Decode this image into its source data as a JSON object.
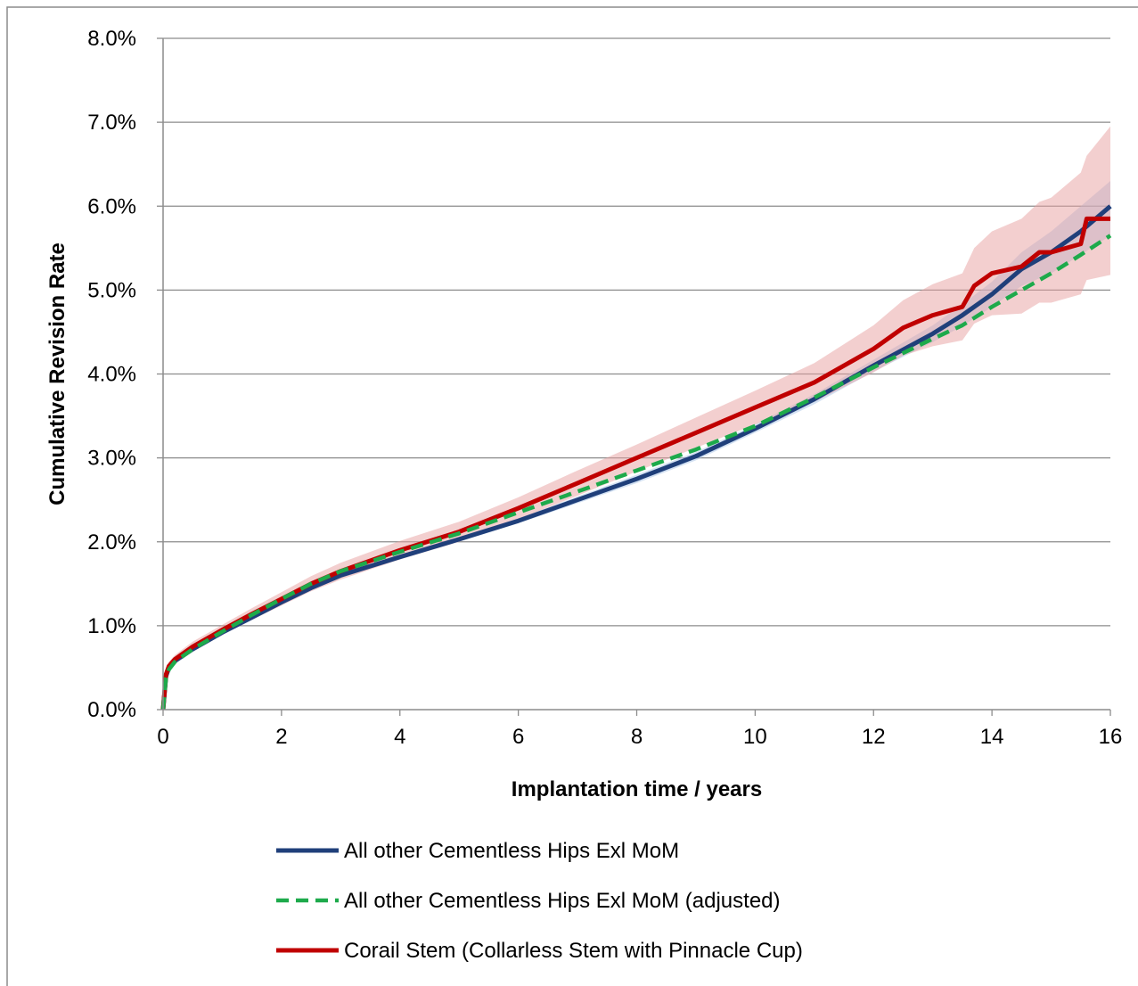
{
  "chart_data": {
    "type": "line",
    "title": "",
    "xlabel": "Implantation time  / years",
    "ylabel": "Cumulative Revision Rate",
    "xlim": [
      0,
      16
    ],
    "ylim": [
      0,
      8
    ],
    "x_ticks": [
      "0",
      "2",
      "4",
      "6",
      "8",
      "10",
      "12",
      "14",
      "16"
    ],
    "y_ticks": [
      "0.0%",
      "1.0%",
      "2.0%",
      "3.0%",
      "4.0%",
      "5.0%",
      "6.0%",
      "7.0%",
      "8.0%"
    ],
    "grid": "horizontal",
    "legend_position": "bottom",
    "series": [
      {
        "name": "All other Cementless Hips Exl MoM",
        "color": "#1f3f7a",
        "style": "solid",
        "x": [
          0,
          0.05,
          0.1,
          0.2,
          0.5,
          1,
          1.5,
          2,
          2.5,
          3,
          4,
          5,
          6,
          7,
          8,
          9,
          10,
          11,
          12,
          13,
          13.5,
          14,
          14.5,
          15,
          15.5,
          16
        ],
        "y": [
          0,
          0.4,
          0.5,
          0.58,
          0.72,
          0.92,
          1.1,
          1.28,
          1.45,
          1.6,
          1.82,
          2.03,
          2.25,
          2.5,
          2.75,
          3.02,
          3.35,
          3.7,
          4.1,
          4.48,
          4.7,
          4.95,
          5.25,
          5.45,
          5.7,
          6.0
        ],
        "ci_lower": [
          0,
          0.38,
          0.48,
          0.56,
          0.7,
          0.9,
          1.08,
          1.26,
          1.43,
          1.57,
          1.79,
          2.0,
          2.22,
          2.46,
          2.7,
          2.97,
          3.3,
          3.64,
          4.03,
          4.38,
          4.57,
          4.8,
          5.05,
          5.2,
          5.42,
          5.65
        ],
        "ci_upper": [
          0,
          0.42,
          0.52,
          0.6,
          0.74,
          0.94,
          1.12,
          1.3,
          1.47,
          1.63,
          1.85,
          2.06,
          2.28,
          2.54,
          2.8,
          3.07,
          3.4,
          3.76,
          4.17,
          4.58,
          4.83,
          5.1,
          5.45,
          5.7,
          6.0,
          6.3
        ]
      },
      {
        "name": "All other Cementless Hips Exl MoM (adjusted)",
        "color": "#1daa4b",
        "style": "dashed",
        "x": [
          0,
          0.05,
          0.1,
          0.2,
          0.5,
          1,
          1.5,
          2,
          2.5,
          3,
          4,
          5,
          6,
          7,
          8,
          9,
          10,
          11,
          12,
          13,
          13.5,
          14,
          14.5,
          15,
          15.5,
          16
        ],
        "y": [
          0,
          0.38,
          0.48,
          0.57,
          0.72,
          0.93,
          1.13,
          1.32,
          1.5,
          1.65,
          1.88,
          2.1,
          2.35,
          2.6,
          2.85,
          3.1,
          3.38,
          3.72,
          4.08,
          4.42,
          4.58,
          4.8,
          5.0,
          5.2,
          5.42,
          5.65
        ]
      },
      {
        "name": "Corail Stem (Collarless Stem with Pinnacle Cup)",
        "color": "#c00000",
        "style": "solid",
        "x": [
          0,
          0.05,
          0.1,
          0.2,
          0.5,
          1,
          1.5,
          2,
          2.5,
          3,
          4,
          5,
          6,
          7,
          8,
          9,
          10,
          11,
          12,
          12.5,
          13,
          13.5,
          13.7,
          14,
          14.5,
          14.8,
          15,
          15.5,
          15.6,
          16
        ],
        "y": [
          0,
          0.42,
          0.52,
          0.6,
          0.75,
          0.95,
          1.14,
          1.32,
          1.5,
          1.65,
          1.9,
          2.12,
          2.4,
          2.7,
          3.0,
          3.3,
          3.6,
          3.9,
          4.3,
          4.55,
          4.7,
          4.8,
          5.05,
          5.2,
          5.28,
          5.45,
          5.45,
          5.55,
          5.85,
          5.85
        ],
        "ci_lower": [
          0,
          0.37,
          0.47,
          0.55,
          0.69,
          0.89,
          1.07,
          1.24,
          1.41,
          1.55,
          1.79,
          2.0,
          2.27,
          2.55,
          2.84,
          3.12,
          3.4,
          3.67,
          4.02,
          4.22,
          4.33,
          4.4,
          4.6,
          4.7,
          4.72,
          4.85,
          4.85,
          4.95,
          5.12,
          5.18
        ],
        "ci_upper": [
          0,
          0.47,
          0.57,
          0.65,
          0.81,
          1.01,
          1.21,
          1.4,
          1.59,
          1.75,
          2.01,
          2.24,
          2.53,
          2.85,
          3.16,
          3.48,
          3.8,
          4.13,
          4.58,
          4.88,
          5.07,
          5.2,
          5.5,
          5.7,
          5.85,
          6.05,
          6.1,
          6.4,
          6.6,
          6.95
        ]
      }
    ]
  }
}
